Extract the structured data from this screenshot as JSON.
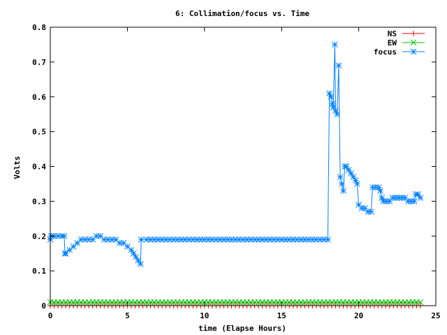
{
  "chart_data": {
    "type": "line",
    "title": "6: Collimation/focus vs. Time",
    "xlabel": "time (Elapse Hours)",
    "ylabel": "Volts",
    "xlim": [
      0,
      25
    ],
    "ylim": [
      0,
      0.8
    ],
    "xticks": [
      "0",
      "5",
      "10",
      "15",
      "20",
      "25"
    ],
    "yticks": [
      "0",
      "0.1",
      "0.2",
      "0.3",
      "0.4",
      "0.5",
      "0.6",
      "0.7",
      "0.8"
    ],
    "grid": false,
    "legend_position": "top-right",
    "series": [
      {
        "name": "NS",
        "color": "#ff0000",
        "marker": "plus",
        "sampling": {
          "start": 0,
          "end": 24,
          "step": 0.25,
          "value": 0.0
        }
      },
      {
        "name": "EW",
        "color": "#00c000",
        "marker": "cross",
        "sampling": {
          "start": 0,
          "end": 24,
          "step": 0.25,
          "value": 0.01
        }
      },
      {
        "name": "focus",
        "color": "#0080ff",
        "marker": "star",
        "points": [
          [
            0.0,
            0.19
          ],
          [
            0.05,
            0.2
          ],
          [
            0.25,
            0.2
          ],
          [
            0.5,
            0.2
          ],
          [
            0.75,
            0.2
          ],
          [
            0.9,
            0.2
          ],
          [
            0.95,
            0.15
          ],
          [
            1.0,
            0.15
          ],
          [
            1.25,
            0.16
          ],
          [
            1.5,
            0.17
          ],
          [
            1.75,
            0.18
          ],
          [
            2.0,
            0.19
          ],
          [
            2.25,
            0.19
          ],
          [
            2.5,
            0.19
          ],
          [
            2.75,
            0.19
          ],
          [
            3.0,
            0.2
          ],
          [
            3.25,
            0.2
          ],
          [
            3.5,
            0.19
          ],
          [
            3.75,
            0.19
          ],
          [
            4.0,
            0.19
          ],
          [
            4.25,
            0.19
          ],
          [
            4.5,
            0.18
          ],
          [
            4.75,
            0.18
          ],
          [
            5.0,
            0.17
          ],
          [
            5.25,
            0.16
          ],
          [
            5.4,
            0.15
          ],
          [
            5.55,
            0.14
          ],
          [
            5.7,
            0.13
          ],
          [
            5.85,
            0.12
          ],
          [
            5.9,
            0.19
          ],
          [
            6.25,
            0.19
          ],
          [
            6.5,
            0.19
          ],
          [
            6.75,
            0.19
          ],
          [
            7.0,
            0.19
          ],
          [
            7.25,
            0.19
          ],
          [
            7.5,
            0.19
          ],
          [
            7.75,
            0.19
          ],
          [
            8.0,
            0.19
          ],
          [
            8.25,
            0.19
          ],
          [
            8.5,
            0.19
          ],
          [
            8.75,
            0.19
          ],
          [
            9.0,
            0.19
          ],
          [
            9.25,
            0.19
          ],
          [
            9.5,
            0.19
          ],
          [
            9.75,
            0.19
          ],
          [
            10.0,
            0.19
          ],
          [
            10.25,
            0.19
          ],
          [
            10.5,
            0.19
          ],
          [
            10.75,
            0.19
          ],
          [
            11.0,
            0.19
          ],
          [
            11.25,
            0.19
          ],
          [
            11.5,
            0.19
          ],
          [
            11.75,
            0.19
          ],
          [
            12.0,
            0.19
          ],
          [
            12.25,
            0.19
          ],
          [
            12.5,
            0.19
          ],
          [
            12.75,
            0.19
          ],
          [
            13.0,
            0.19
          ],
          [
            13.25,
            0.19
          ],
          [
            13.5,
            0.19
          ],
          [
            13.75,
            0.19
          ],
          [
            14.0,
            0.19
          ],
          [
            14.25,
            0.19
          ],
          [
            14.5,
            0.19
          ],
          [
            14.75,
            0.19
          ],
          [
            15.0,
            0.19
          ],
          [
            15.25,
            0.19
          ],
          [
            15.5,
            0.19
          ],
          [
            15.75,
            0.19
          ],
          [
            16.0,
            0.19
          ],
          [
            16.25,
            0.19
          ],
          [
            16.5,
            0.19
          ],
          [
            16.75,
            0.19
          ],
          [
            17.0,
            0.19
          ],
          [
            17.25,
            0.19
          ],
          [
            17.5,
            0.19
          ],
          [
            17.75,
            0.19
          ],
          [
            18.0,
            0.19
          ],
          [
            18.1,
            0.61
          ],
          [
            18.2,
            0.6
          ],
          [
            18.3,
            0.58
          ],
          [
            18.35,
            0.57
          ],
          [
            18.45,
            0.75
          ],
          [
            18.5,
            0.56
          ],
          [
            18.6,
            0.55
          ],
          [
            18.7,
            0.69
          ],
          [
            18.8,
            0.37
          ],
          [
            18.9,
            0.35
          ],
          [
            19.0,
            0.33
          ],
          [
            19.1,
            0.4
          ],
          [
            19.2,
            0.4
          ],
          [
            19.35,
            0.39
          ],
          [
            19.5,
            0.38
          ],
          [
            19.65,
            0.37
          ],
          [
            19.8,
            0.36
          ],
          [
            19.9,
            0.35
          ],
          [
            20.0,
            0.29
          ],
          [
            20.2,
            0.28
          ],
          [
            20.4,
            0.28
          ],
          [
            20.6,
            0.27
          ],
          [
            20.8,
            0.27
          ],
          [
            20.9,
            0.34
          ],
          [
            21.1,
            0.34
          ],
          [
            21.3,
            0.34
          ],
          [
            21.4,
            0.33
          ],
          [
            21.5,
            0.31
          ],
          [
            21.6,
            0.3
          ],
          [
            21.8,
            0.3
          ],
          [
            22.0,
            0.3
          ],
          [
            22.2,
            0.31
          ],
          [
            22.4,
            0.31
          ],
          [
            22.6,
            0.31
          ],
          [
            22.8,
            0.31
          ],
          [
            23.0,
            0.31
          ],
          [
            23.2,
            0.3
          ],
          [
            23.4,
            0.3
          ],
          [
            23.6,
            0.3
          ],
          [
            23.7,
            0.32
          ],
          [
            23.85,
            0.32
          ],
          [
            24.0,
            0.31
          ]
        ]
      }
    ]
  }
}
